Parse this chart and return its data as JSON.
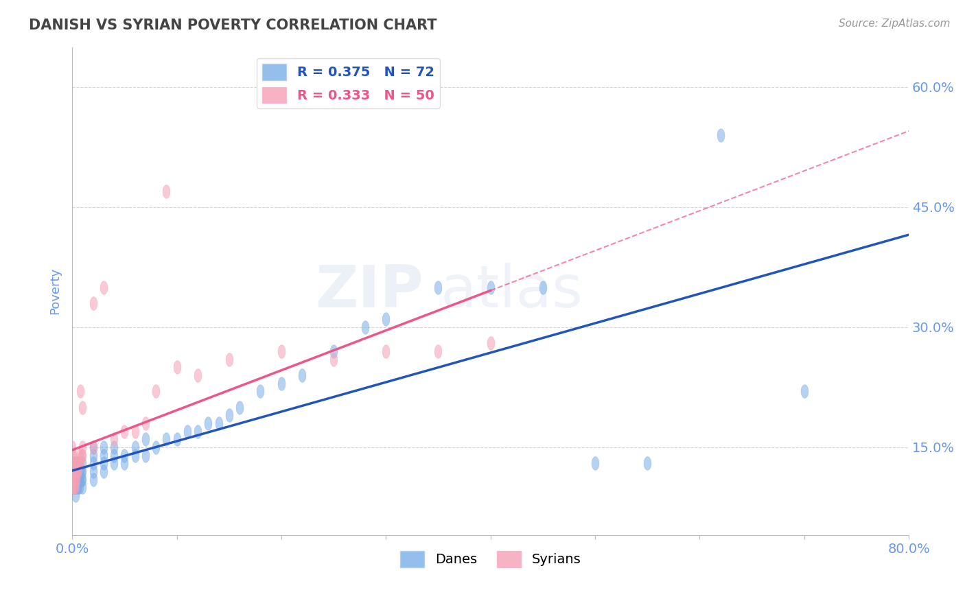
{
  "title": "DANISH VS SYRIAN POVERTY CORRELATION CHART",
  "source_text": "Source: ZipAtlas.com",
  "ylabel": "Poverty",
  "xlim": [
    0.0,
    0.8
  ],
  "ylim": [
    0.04,
    0.65
  ],
  "yticks": [
    0.15,
    0.3,
    0.45,
    0.6
  ],
  "ytick_labels": [
    "15.0%",
    "30.0%",
    "45.0%",
    "60.0%"
  ],
  "xticks": [
    0.0,
    0.1,
    0.2,
    0.3,
    0.4,
    0.5,
    0.6,
    0.7,
    0.8
  ],
  "xtick_labels": [
    "0.0%",
    "",
    "",
    "",
    "",
    "",
    "",
    "",
    "80.0%"
  ],
  "danes_color": "#7aaee8",
  "syrians_color": "#f5a0b5",
  "danes_line_color": "#2255bb",
  "syrians_line_color": "#ee5588",
  "background_color": "#FFFFFF",
  "grid_color": "#cccccc",
  "title_color": "#444444",
  "tick_color": "#6699ee",
  "danes_x": [
    0.001,
    0.001,
    0.001,
    0.002,
    0.002,
    0.002,
    0.002,
    0.003,
    0.003,
    0.003,
    0.004,
    0.004,
    0.004,
    0.004,
    0.005,
    0.005,
    0.005,
    0.005,
    0.006,
    0.006,
    0.006,
    0.007,
    0.007,
    0.007,
    0.008,
    0.008,
    0.009,
    0.009,
    0.01,
    0.01,
    0.01,
    0.01,
    0.02,
    0.02,
    0.02,
    0.02,
    0.02,
    0.03,
    0.03,
    0.03,
    0.03,
    0.04,
    0.04,
    0.04,
    0.05,
    0.05,
    0.06,
    0.06,
    0.07,
    0.07,
    0.08,
    0.09,
    0.1,
    0.11,
    0.12,
    0.13,
    0.14,
    0.15,
    0.16,
    0.18,
    0.2,
    0.22,
    0.25,
    0.28,
    0.3,
    0.35,
    0.4,
    0.45,
    0.5,
    0.55,
    0.62,
    0.7
  ],
  "danes_y": [
    0.1,
    0.11,
    0.12,
    0.1,
    0.11,
    0.12,
    0.13,
    0.09,
    0.1,
    0.11,
    0.1,
    0.11,
    0.12,
    0.13,
    0.1,
    0.11,
    0.12,
    0.13,
    0.1,
    0.11,
    0.12,
    0.1,
    0.11,
    0.12,
    0.11,
    0.12,
    0.11,
    0.12,
    0.1,
    0.11,
    0.12,
    0.13,
    0.11,
    0.12,
    0.13,
    0.14,
    0.15,
    0.12,
    0.13,
    0.14,
    0.15,
    0.13,
    0.14,
    0.15,
    0.13,
    0.14,
    0.14,
    0.15,
    0.14,
    0.16,
    0.15,
    0.16,
    0.16,
    0.17,
    0.17,
    0.18,
    0.18,
    0.19,
    0.2,
    0.22,
    0.23,
    0.24,
    0.27,
    0.3,
    0.31,
    0.35,
    0.35,
    0.35,
    0.13,
    0.13,
    0.54,
    0.22
  ],
  "syrians_x": [
    0.0,
    0.0,
    0.0,
    0.0,
    0.0,
    0.0,
    0.001,
    0.001,
    0.001,
    0.001,
    0.001,
    0.002,
    0.002,
    0.002,
    0.002,
    0.003,
    0.003,
    0.003,
    0.004,
    0.004,
    0.004,
    0.005,
    0.005,
    0.006,
    0.006,
    0.007,
    0.007,
    0.008,
    0.008,
    0.009,
    0.01,
    0.01,
    0.01,
    0.02,
    0.02,
    0.03,
    0.04,
    0.05,
    0.06,
    0.07,
    0.08,
    0.09,
    0.1,
    0.12,
    0.15,
    0.2,
    0.25,
    0.3,
    0.35,
    0.4
  ],
  "syrians_y": [
    0.1,
    0.11,
    0.12,
    0.13,
    0.14,
    0.15,
    0.1,
    0.11,
    0.12,
    0.13,
    0.14,
    0.1,
    0.11,
    0.12,
    0.13,
    0.1,
    0.11,
    0.12,
    0.11,
    0.12,
    0.13,
    0.12,
    0.13,
    0.12,
    0.13,
    0.13,
    0.14,
    0.13,
    0.22,
    0.14,
    0.14,
    0.15,
    0.2,
    0.15,
    0.33,
    0.35,
    0.16,
    0.17,
    0.17,
    0.18,
    0.22,
    0.47,
    0.25,
    0.24,
    0.26,
    0.27,
    0.26,
    0.27,
    0.27,
    0.28
  ],
  "watermark_text_zip": "ZIP",
  "watermark_text_atlas": "atlas"
}
